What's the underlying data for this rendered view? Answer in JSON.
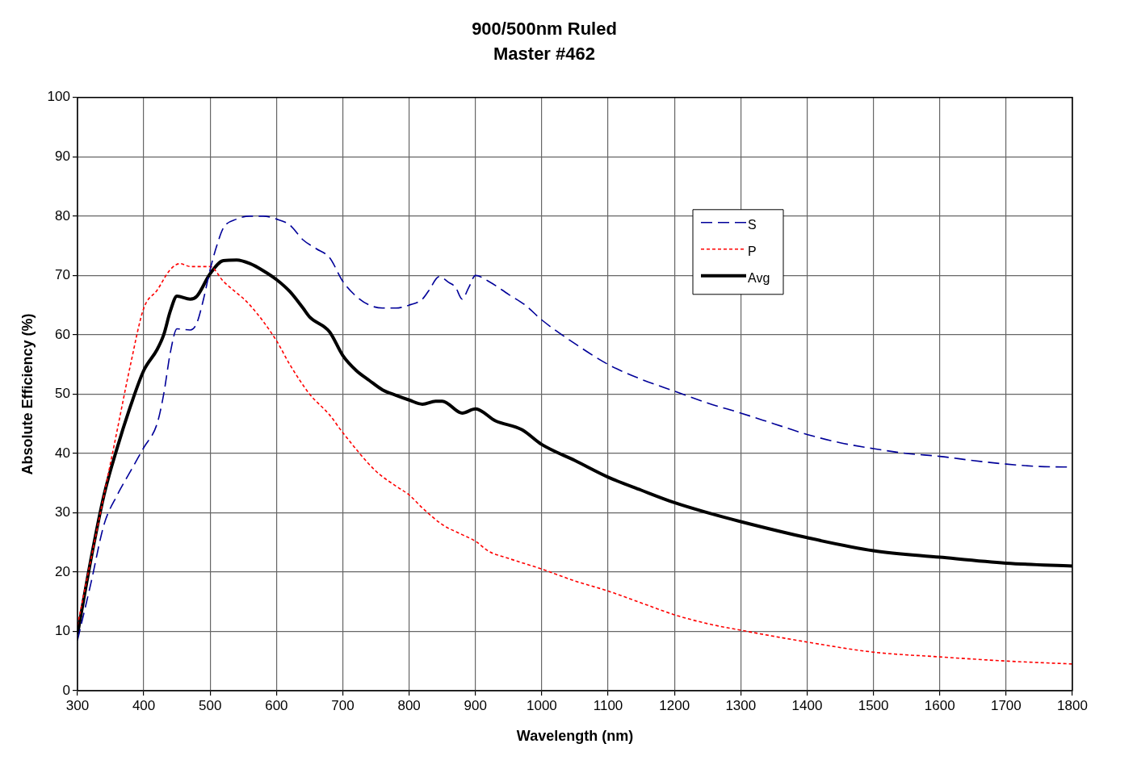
{
  "chart_data": {
    "type": "line",
    "title": "900/500nm Ruled",
    "subtitle": "Master #462",
    "xlabel": "Wavelength (nm)",
    "ylabel": "Absolute Efficiency (%)",
    "xlim": [
      300,
      1800
    ],
    "xticks": [
      300,
      400,
      500,
      600,
      700,
      800,
      900,
      1000,
      1100,
      1200,
      1300,
      1400,
      1500,
      1600,
      1700,
      1800
    ],
    "ylim": [
      0,
      100
    ],
    "yticks": [
      0,
      10,
      20,
      30,
      40,
      50,
      60,
      70,
      80,
      90,
      100
    ],
    "grid": true,
    "legend": "top right",
    "marker": "none",
    "series": [
      {
        "name": "S",
        "color": "#000099",
        "line_style": "dashed",
        "x": [
          300,
          320,
          340,
          360,
          380,
          400,
          420,
          430,
          440,
          450,
          470,
          480,
          490,
          500,
          510,
          520,
          540,
          560,
          580,
          600,
          620,
          640,
          660,
          680,
          700,
          720,
          740,
          760,
          780,
          800,
          820,
          830,
          845,
          860,
          870,
          880,
          890,
          900,
          920,
          950,
          975,
          1000,
          1050,
          1100,
          1150,
          1200,
          1250,
          1300,
          1350,
          1400,
          1450,
          1500,
          1550,
          1600,
          1650,
          1700,
          1750,
          1800
        ],
        "values": [
          8.5,
          18,
          28,
          33,
          37,
          41,
          45,
          50,
          57,
          61,
          60.8,
          62,
          66,
          71,
          75,
          78,
          79.5,
          80,
          80,
          79.5,
          78.5,
          76,
          74.5,
          73,
          69,
          66.5,
          65,
          64.5,
          64.5,
          65,
          66,
          67.5,
          69.8,
          68.8,
          68,
          66,
          68,
          70,
          69,
          66.8,
          65,
          62.5,
          58.5,
          55,
          52.5,
          50.5,
          48.5,
          46.8,
          45,
          43.2,
          41.8,
          40.8,
          40,
          39.5,
          38.8,
          38.2,
          37.8,
          37.7
        ]
      },
      {
        "name": "P",
        "color": "#ff0000",
        "line_style": "dotted",
        "x": [
          300,
          320,
          340,
          360,
          380,
          400,
          420,
          440,
          455,
          470,
          500,
          520,
          560,
          600,
          620,
          650,
          680,
          700,
          750,
          780,
          800,
          820,
          850,
          880,
          900,
          920,
          950,
          1000,
          1050,
          1100,
          1150,
          1200,
          1250,
          1300,
          1400,
          1500,
          1600,
          1700,
          1800
        ],
        "values": [
          11,
          22,
          33,
          44,
          55,
          64.5,
          67.5,
          71,
          72,
          71.5,
          71.5,
          69,
          65,
          59,
          55,
          50,
          46.5,
          43.5,
          37,
          34.5,
          33,
          30.8,
          28,
          26.3,
          25.2,
          23.5,
          22.3,
          20.5,
          18.5,
          16.8,
          14.8,
          12.8,
          11.3,
          10.2,
          8.2,
          6.5,
          5.7,
          5,
          4.5
        ]
      },
      {
        "name": "Avg",
        "color": "#000000",
        "line_style": "solid",
        "x": [
          300,
          320,
          340,
          360,
          380,
          400,
          420,
          430,
          440,
          450,
          470,
          480,
          500,
          520,
          540,
          560,
          580,
          600,
          620,
          640,
          650,
          680,
          700,
          720,
          740,
          760,
          780,
          800,
          820,
          840,
          850,
          880,
          900,
          930,
          970,
          1000,
          1050,
          1100,
          1150,
          1200,
          1250,
          1300,
          1400,
          1500,
          1600,
          1700,
          1800
        ],
        "values": [
          9.5,
          22,
          33,
          41,
          48,
          54,
          57.5,
          60,
          64,
          66.5,
          66,
          66.5,
          70.3,
          72.5,
          72.6,
          72,
          70.8,
          69.3,
          67.3,
          64.5,
          63,
          60.5,
          56.5,
          54,
          52.3,
          50.7,
          49.8,
          49,
          48.3,
          48.8,
          48.8,
          46.8,
          47.5,
          45.5,
          44,
          41.5,
          38.8,
          36,
          33.8,
          31.7,
          30,
          28.5,
          25.8,
          23.6,
          22.5,
          21.5,
          21
        ]
      }
    ]
  }
}
